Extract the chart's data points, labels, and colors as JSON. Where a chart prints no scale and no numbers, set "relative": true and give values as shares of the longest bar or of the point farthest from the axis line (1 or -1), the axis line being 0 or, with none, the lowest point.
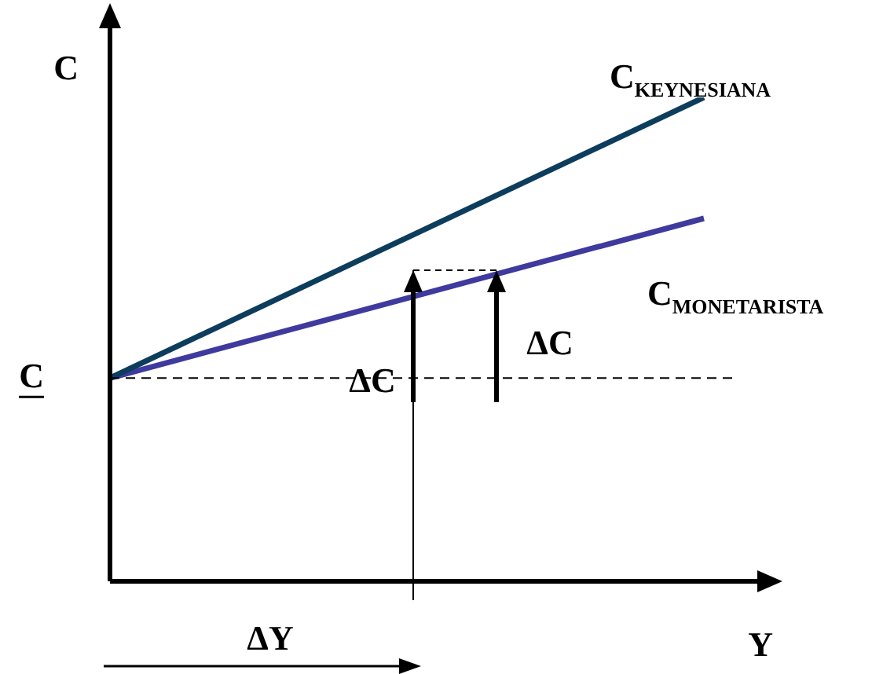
{
  "chart_data": {
    "type": "line",
    "relative": true,
    "xlabel": "Y",
    "ylabel": "C",
    "categories": [
      null,
      null
    ],
    "series": [
      {
        "name": "C$_{KEYNESIANA}$",
        "color": "#0d3d5c",
        "values": [
          0.42,
          1
        ]
      },
      {
        "name": "C$_{MONETARISTA}$",
        "color": "#3f3a9e",
        "values": [
          0.42,
          0.75
        ]
      }
    ],
    "ref_lines": [
      {
        "axis": "y",
        "value": 0.42,
        "label": "C",
        "line_style": "dashed"
      }
    ],
    "annotations": [
      "ΔC",
      "ΔC",
      "ΔY"
    ],
    "marker": "none",
    "line_style": "solid"
  }
}
